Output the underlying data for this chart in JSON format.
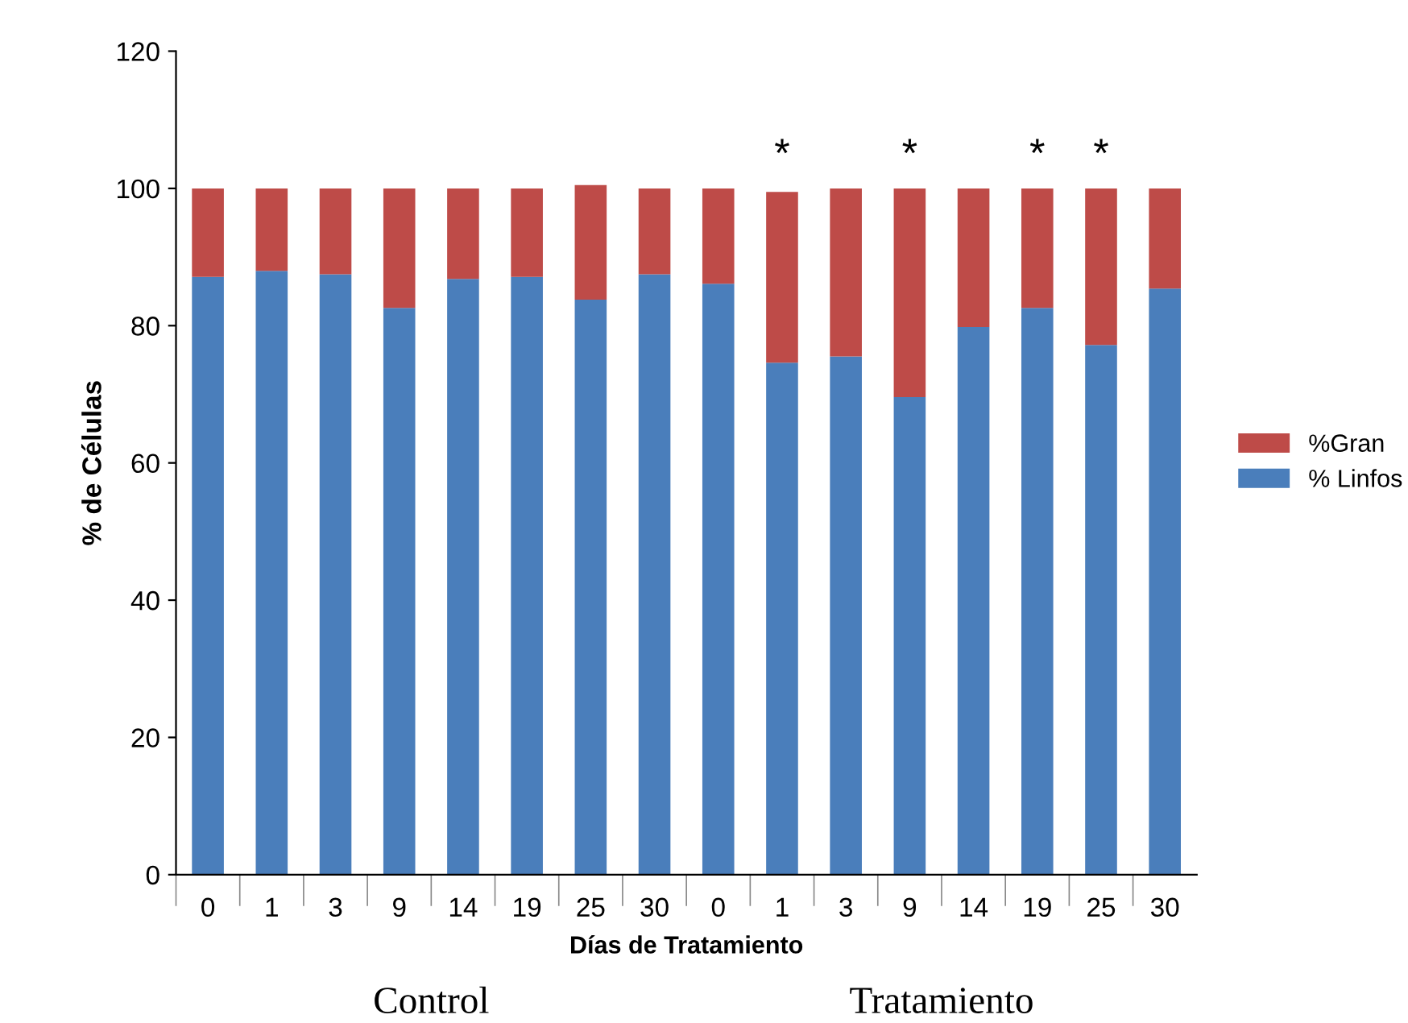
{
  "chart_data": {
    "type": "bar",
    "stacked": true,
    "xlabel": "Días de Tratamiento",
    "ylabel": "% de Células",
    "categories": [
      "0",
      "1",
      "3",
      "9",
      "14",
      "19",
      "25",
      "30",
      "0",
      "1",
      "3",
      "9",
      "14",
      "19",
      "25",
      "30"
    ],
    "series": [
      {
        "name": "% Linfos",
        "color": "#4a7ebb",
        "values": [
          87.1,
          88.0,
          87.5,
          82.6,
          86.8,
          87.1,
          83.8,
          87.5,
          86.1,
          74.6,
          75.5,
          69.6,
          79.8,
          82.6,
          77.2,
          85.4
        ]
      },
      {
        "name": "%Gran",
        "color": "#be4b48",
        "values": [
          12.9,
          12.0,
          12.5,
          17.4,
          13.2,
          12.9,
          16.7,
          12.5,
          13.9,
          24.9,
          24.5,
          30.4,
          20.2,
          17.4,
          22.8,
          14.6
        ]
      }
    ],
    "ylim": [
      0,
      120
    ],
    "yticks": [
      0,
      20,
      40,
      60,
      80,
      100,
      120
    ],
    "legend": "right",
    "grid": false,
    "annotations": [
      "*",
      "*",
      "*",
      "*",
      "Control",
      "Tratamiento"
    ]
  }
}
